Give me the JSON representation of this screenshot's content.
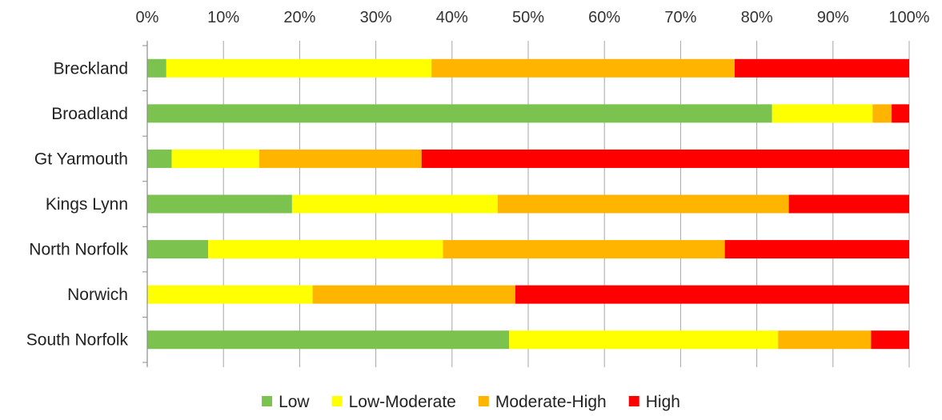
{
  "chart_data": {
    "type": "bar",
    "orientation": "horizontal",
    "stacked": "percent",
    "title": "",
    "xlabel": "",
    "ylabel": "",
    "xlim": [
      0,
      100
    ],
    "x_ticks": [
      "0%",
      "10%",
      "20%",
      "30%",
      "40%",
      "50%",
      "60%",
      "70%",
      "80%",
      "90%",
      "100%"
    ],
    "x_axis_position": "top",
    "grid": "vertical",
    "legend_position": "bottom",
    "categories": [
      "Breckland",
      "Broadland",
      "Gt Yarmouth",
      "Kings Lynn",
      "North Norfolk",
      "Norwich",
      "South Norfolk"
    ],
    "series": [
      {
        "name": "Low",
        "color": "#7cc24f",
        "values": [
          2.5,
          82,
          3.2,
          19,
          8,
          0,
          47.5
        ]
      },
      {
        "name": "Low-Moderate",
        "color": "#ffff00",
        "values": [
          34.8,
          13.2,
          11.5,
          27,
          30.8,
          21.7,
          35.3
        ]
      },
      {
        "name": "Moderate-High",
        "color": "#ffb400",
        "values": [
          39.8,
          2.5,
          21.3,
          38.2,
          37,
          26.6,
          12.2
        ]
      },
      {
        "name": "High",
        "color": "#ff0000",
        "values": [
          22.9,
          2.3,
          64,
          15.8,
          24.2,
          51.7,
          5
        ]
      }
    ]
  }
}
